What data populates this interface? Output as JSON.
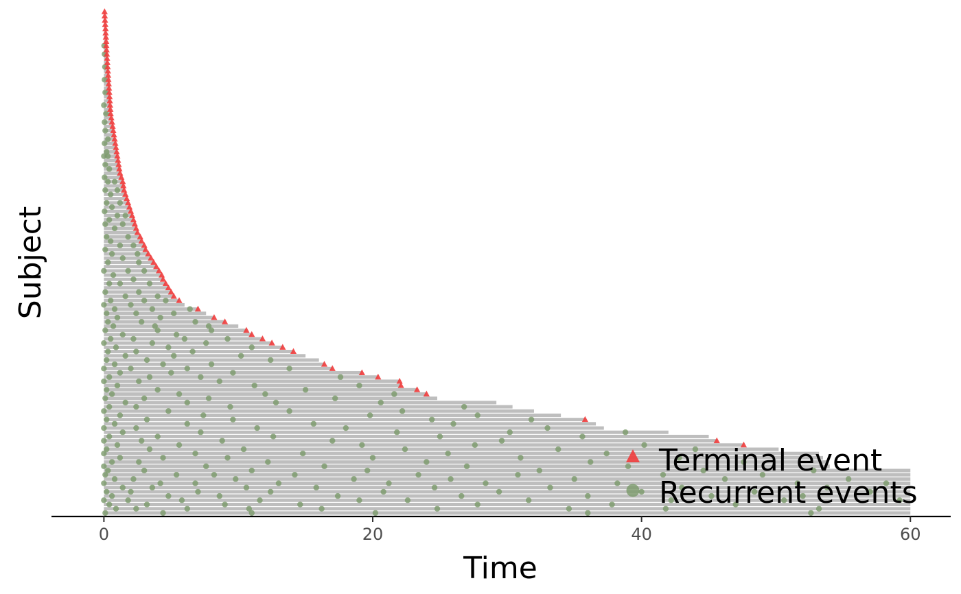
{
  "chart_data": {
    "type": "scatter",
    "subtype": "event-plot",
    "title": "",
    "xlabel": "Time",
    "ylabel": "Subject",
    "xlim": [
      -3.9,
      63
    ],
    "x_ticks": [
      0,
      20,
      40,
      60
    ],
    "x_tick_labels": [
      "0",
      "20",
      "40",
      "60"
    ],
    "y_ticks": [],
    "grid": false,
    "legend_position": "bottom-right",
    "colors": {
      "bar": "#bebebe",
      "terminal": "#f03c3c",
      "recurrent": "#7a9a6a",
      "axis": "#000000"
    },
    "legend": [
      {
        "name": "Terminal event",
        "shape": "triangle"
      },
      {
        "name": "Recurrent events",
        "shape": "circle"
      }
    ],
    "subjects": [
      {
        "end": 0.05,
        "term": true,
        "rec": []
      },
      {
        "end": 0.06,
        "term": true,
        "rec": []
      },
      {
        "end": 0.08,
        "term": true,
        "rec": []
      },
      {
        "end": 0.1,
        "term": true,
        "rec": []
      },
      {
        "end": 0.12,
        "term": true,
        "rec": []
      },
      {
        "end": 0.13,
        "term": true,
        "rec": []
      },
      {
        "end": 0.15,
        "term": true,
        "rec": []
      },
      {
        "end": 0.17,
        "term": true,
        "rec": []
      },
      {
        "end": 0.18,
        "term": true,
        "rec": [
          0.02
        ]
      },
      {
        "end": 0.2,
        "term": true,
        "rec": []
      },
      {
        "end": 0.22,
        "term": true,
        "rec": [
          0.05
        ]
      },
      {
        "end": 0.24,
        "term": true,
        "rec": []
      },
      {
        "end": 0.26,
        "term": true,
        "rec": []
      },
      {
        "end": 0.28,
        "term": true,
        "rec": [
          0.08
        ]
      },
      {
        "end": 0.3,
        "term": true,
        "rec": []
      },
      {
        "end": 0.32,
        "term": true,
        "rec": []
      },
      {
        "end": 0.34,
        "term": true,
        "rec": [
          0.05
        ]
      },
      {
        "end": 0.36,
        "term": true,
        "rec": []
      },
      {
        "end": 0.38,
        "term": true,
        "rec": []
      },
      {
        "end": 0.4,
        "term": true,
        "rec": [
          0.1
        ]
      },
      {
        "end": 0.42,
        "term": true,
        "rec": []
      },
      {
        "end": 0.44,
        "term": true,
        "rec": []
      },
      {
        "end": 0.46,
        "term": true,
        "rec": [
          0.0
        ]
      },
      {
        "end": 0.48,
        "term": true,
        "rec": []
      },
      {
        "end": 0.5,
        "term": true,
        "rec": [
          0.15
        ]
      },
      {
        "end": 0.55,
        "term": true,
        "rec": []
      },
      {
        "end": 0.6,
        "term": true,
        "rec": [
          0.05
        ]
      },
      {
        "end": 0.65,
        "term": true,
        "rec": []
      },
      {
        "end": 0.7,
        "term": true,
        "rec": [
          0.1
        ]
      },
      {
        "end": 0.75,
        "term": true,
        "rec": []
      },
      {
        "end": 0.8,
        "term": true,
        "rec": [
          0.3
        ]
      },
      {
        "end": 0.85,
        "term": true,
        "rec": [
          0.05
        ]
      },
      {
        "end": 0.9,
        "term": true,
        "rec": []
      },
      {
        "end": 0.95,
        "term": true,
        "rec": [
          0.2
        ]
      },
      {
        "end": 1.0,
        "term": true,
        "rec": [
          0.0,
          0.3
        ]
      },
      {
        "end": 1.05,
        "term": true,
        "rec": []
      },
      {
        "end": 1.1,
        "term": true,
        "rec": [
          0.1
        ]
      },
      {
        "end": 1.15,
        "term": true,
        "rec": [
          0.4
        ]
      },
      {
        "end": 1.2,
        "term": true,
        "rec": []
      },
      {
        "end": 1.3,
        "term": true,
        "rec": [
          0.05
        ]
      },
      {
        "end": 1.4,
        "term": true,
        "rec": [
          0.3,
          0.8
        ]
      },
      {
        "end": 1.45,
        "term": true,
        "rec": []
      },
      {
        "end": 1.5,
        "term": true,
        "rec": [
          0.1,
          1.0
        ]
      },
      {
        "end": 1.6,
        "term": true,
        "rec": [
          0.5
        ]
      },
      {
        "end": 1.7,
        "term": true,
        "rec": []
      },
      {
        "end": 1.8,
        "term": true,
        "rec": [
          0.2,
          1.2
        ]
      },
      {
        "end": 1.9,
        "term": true,
        "rec": [
          0.6
        ]
      },
      {
        "end": 2.0,
        "term": true,
        "rec": [
          0.05
        ]
      },
      {
        "end": 2.1,
        "term": true,
        "rec": [
          1.0,
          1.6
        ]
      },
      {
        "end": 2.2,
        "term": true,
        "rec": [
          0.4
        ]
      },
      {
        "end": 2.3,
        "term": true,
        "rec": [
          0.1,
          1.4
        ]
      },
      {
        "end": 2.4,
        "term": true,
        "rec": [
          0.8
        ]
      },
      {
        "end": 2.5,
        "term": true,
        "rec": []
      },
      {
        "end": 2.7,
        "term": true,
        "rec": [
          0.2,
          1.8
        ]
      },
      {
        "end": 2.8,
        "term": true,
        "rec": [
          0.5
        ]
      },
      {
        "end": 3.0,
        "term": true,
        "rec": [
          1.2,
          2.2
        ]
      },
      {
        "end": 3.1,
        "term": true,
        "rec": [
          0.1
        ]
      },
      {
        "end": 3.3,
        "term": true,
        "rec": [
          0.6,
          2.5
        ]
      },
      {
        "end": 3.5,
        "term": true,
        "rec": [
          1.4
        ]
      },
      {
        "end": 3.7,
        "term": true,
        "rec": [
          0.3,
          2.6
        ]
      },
      {
        "end": 3.9,
        "term": true,
        "rec": []
      },
      {
        "end": 4.1,
        "term": true,
        "rec": [
          0.0,
          1.8,
          3.0
        ]
      },
      {
        "end": 4.3,
        "term": true,
        "rec": [
          0.7
        ]
      },
      {
        "end": 4.4,
        "term": true,
        "rec": [
          2.2
        ]
      },
      {
        "end": 4.6,
        "term": true,
        "rec": [
          0.4,
          1.2,
          3.4
        ]
      },
      {
        "end": 4.8,
        "term": true,
        "rec": []
      },
      {
        "end": 5.0,
        "term": true,
        "rec": [
          0.1,
          2.6
        ]
      },
      {
        "end": 5.2,
        "term": true,
        "rec": [
          1.6,
          4.0
        ]
      },
      {
        "end": 5.6,
        "term": true,
        "rec": [
          0.5,
          3.0,
          4.6
        ]
      },
      {
        "end": 6.0,
        "term": false,
        "rec": [
          0.0,
          2.0
        ]
      },
      {
        "end": 7.0,
        "term": true,
        "rec": [
          0.8,
          3.6,
          6.4
        ]
      },
      {
        "end": 7.6,
        "term": false,
        "rec": [
          0.2,
          2.4,
          5.2
        ]
      },
      {
        "end": 8.2,
        "term": true,
        "rec": [
          1.0,
          4.2
        ]
      },
      {
        "end": 9.0,
        "term": true,
        "rec": [
          0.3,
          2.8,
          6.8
        ]
      },
      {
        "end": 10.0,
        "term": false,
        "rec": [
          0.7,
          3.8,
          7.8
        ]
      },
      {
        "end": 10.6,
        "term": true,
        "rec": [
          0.1,
          4.0,
          8.0
        ]
      },
      {
        "end": 11.0,
        "term": true,
        "rec": [
          1.4,
          5.4
        ]
      },
      {
        "end": 11.8,
        "term": true,
        "rec": [
          0.5,
          2.2,
          6.0,
          9.2
        ]
      },
      {
        "end": 12.5,
        "term": true,
        "rec": [
          0.0,
          3.6,
          7.6
        ]
      },
      {
        "end": 13.3,
        "term": true,
        "rec": [
          0.9,
          4.8,
          11.0
        ]
      },
      {
        "end": 14.1,
        "term": true,
        "rec": [
          0.3,
          2.4,
          6.6
        ]
      },
      {
        "end": 15.0,
        "term": false,
        "rec": [
          1.6,
          5.2,
          10.2
        ]
      },
      {
        "end": 16.0,
        "term": false,
        "rec": [
          0.2,
          3.2,
          12.4
        ]
      },
      {
        "end": 16.4,
        "term": true,
        "rec": [
          0.8,
          4.4,
          8.0
        ]
      },
      {
        "end": 17.0,
        "term": true,
        "rec": [
          0.0,
          2.0,
          6.2,
          13.8
        ]
      },
      {
        "end": 19.2,
        "term": true,
        "rec": [
          1.2,
          5.0,
          9.6
        ]
      },
      {
        "end": 20.4,
        "term": true,
        "rec": [
          0.4,
          3.4,
          7.2,
          17.6
        ]
      },
      {
        "end": 22.0,
        "term": true,
        "rec": [
          0.0,
          2.6,
          8.6
        ]
      },
      {
        "end": 22.1,
        "term": true,
        "rec": [
          1.0,
          11.2,
          19.0
        ]
      },
      {
        "end": 23.3,
        "term": true,
        "rec": [
          0.2,
          4.0,
          15.0
        ]
      },
      {
        "end": 24.0,
        "term": true,
        "rec": [
          0.6,
          5.6,
          12.0,
          21.6
        ]
      },
      {
        "end": 24.8,
        "term": false,
        "rec": [
          0.1,
          3.0,
          7.8,
          17.2
        ]
      },
      {
        "end": 29.2,
        "term": false,
        "rec": [
          1.6,
          6.2,
          12.8,
          20.6
        ]
      },
      {
        "end": 30.4,
        "term": false,
        "rec": [
          0.4,
          2.4,
          9.4,
          26.8
        ]
      },
      {
        "end": 32.0,
        "term": false,
        "rec": [
          0.0,
          4.8,
          13.8,
          22.2
        ]
      },
      {
        "end": 34.0,
        "term": false,
        "rec": [
          1.2,
          7.4,
          19.8,
          27.8
        ]
      },
      {
        "end": 35.8,
        "term": true,
        "rec": [
          0.2,
          3.2,
          9.6,
          24.4,
          31.8
        ]
      },
      {
        "end": 36.6,
        "term": false,
        "rec": [
          0.8,
          6.2,
          15.6,
          26.0
        ]
      },
      {
        "end": 37.2,
        "term": false,
        "rec": [
          0.0,
          2.4,
          11.4,
          18.0,
          33.0
        ]
      },
      {
        "end": 42.0,
        "term": false,
        "rec": [
          1.4,
          7.2,
          21.8,
          30.2,
          38.8
        ]
      },
      {
        "end": 45.0,
        "term": false,
        "rec": [
          0.4,
          4.0,
          12.6,
          25.0,
          35.6
        ]
      },
      {
        "end": 45.6,
        "term": true,
        "rec": [
          0.0,
          2.8,
          8.8,
          17.0,
          29.6
        ]
      },
      {
        "end": 47.6,
        "term": true,
        "rec": [
          1.0,
          5.6,
          19.2,
          27.6,
          40.2
        ]
      },
      {
        "end": 50.2,
        "term": false,
        "rec": [
          0.2,
          3.4,
          10.4,
          22.4,
          33.8,
          44.0
        ]
      },
      {
        "end": 53.2,
        "term": false,
        "rec": [
          0.0,
          6.8,
          14.8,
          25.6,
          37.4
        ]
      },
      {
        "end": 53.5,
        "term": false,
        "rec": [
          1.2,
          4.4,
          9.2,
          20.0,
          31.0,
          42.8
        ]
      },
      {
        "end": 53.8,
        "term": false,
        "rec": [
          0.6,
          2.6,
          12.2,
          24.0,
          36.2,
          47.6
        ]
      },
      {
        "end": 54.0,
        "term": false,
        "rec": [
          0.0,
          7.6,
          16.4,
          27.0,
          39.0
        ]
      },
      {
        "end": 60.0,
        "term": false,
        "rec": [
          0.3,
          3.0,
          11.0,
          19.6,
          32.4,
          44.6,
          52.8
        ]
      },
      {
        "end": 60.0,
        "term": false,
        "rec": [
          0.1,
          5.4,
          8.2,
          14.2,
          23.4,
          30.8,
          41.6,
          49.0
        ]
      },
      {
        "end": 60.0,
        "term": false,
        "rec": [
          0.8,
          2.2,
          9.8,
          18.6,
          25.8,
          35.0,
          46.2,
          55.4
        ]
      },
      {
        "end": 60.0,
        "term": false,
        "rec": [
          0.0,
          4.2,
          6.8,
          13.0,
          21.2,
          28.4,
          38.2,
          51.6,
          58.2
        ]
      },
      {
        "end": 60.0,
        "term": false,
        "rec": [
          1.4,
          3.6,
          10.6,
          15.8,
          24.6,
          33.2,
          43.0,
          53.8
        ]
      },
      {
        "end": 60.0,
        "term": false,
        "rec": [
          0.2,
          2.0,
          7.0,
          12.4,
          20.8,
          29.4,
          40.0,
          48.4,
          57.0
        ]
      },
      {
        "end": 60.0,
        "term": false,
        "rec": [
          0.6,
          4.8,
          8.6,
          17.4,
          26.6,
          36.0,
          45.2,
          52.0
        ]
      },
      {
        "end": 60.0,
        "term": false,
        "rec": [
          0.0,
          1.8,
          5.8,
          11.6,
          19.0,
          22.6,
          31.6,
          42.2,
          50.6,
          59.2
        ]
      },
      {
        "end": 60.0,
        "term": false,
        "rec": [
          0.4,
          3.2,
          9.0,
          14.6,
          27.8,
          37.8,
          47.0
        ]
      },
      {
        "end": 60.0,
        "term": false,
        "rec": [
          0.9,
          2.4,
          6.2,
          10.8,
          16.2,
          24.8,
          34.6,
          41.8,
          53.2
        ]
      },
      {
        "end": 60.0,
        "term": false,
        "rec": [
          0.1,
          4.4,
          11.0,
          20.2,
          36.0,
          52.6
        ]
      }
    ]
  }
}
